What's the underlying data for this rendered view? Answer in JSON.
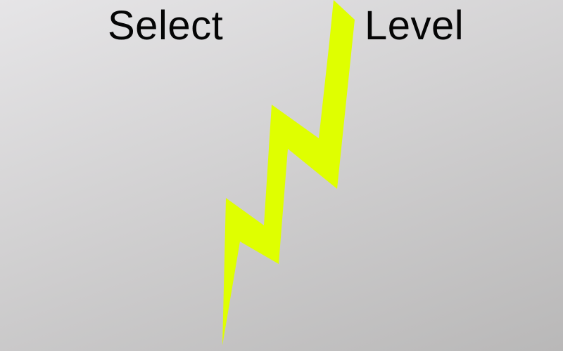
{
  "title": {
    "left_word": "Select",
    "right_word": "Level"
  },
  "divider": {
    "icon": "lightning-bolt-icon",
    "color": "#dfff00"
  },
  "colors": {
    "text": "#050505",
    "background_light": "#e6e5e7",
    "background_dark": "#b9b8b8"
  }
}
